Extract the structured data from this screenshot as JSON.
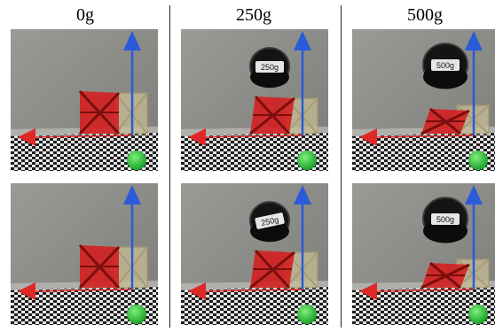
{
  "columns": [
    {
      "label": "0g",
      "weight_label": ""
    },
    {
      "label": "250g",
      "weight_label": "250g"
    },
    {
      "label": "500g",
      "weight_label": "500g"
    }
  ],
  "rows": 2,
  "colors": {
    "background_wall": "#8c8c88",
    "lattice_red": "#d42020",
    "lattice_beige": "#c8bd96",
    "axis_x_red": "#e02828",
    "axis_y_blue": "#2a5bd8",
    "axis_z_green": "#22b832",
    "weight_black": "#141414",
    "checker_dark": "#1e1e1e",
    "checker_light": "#e6e6e6"
  }
}
